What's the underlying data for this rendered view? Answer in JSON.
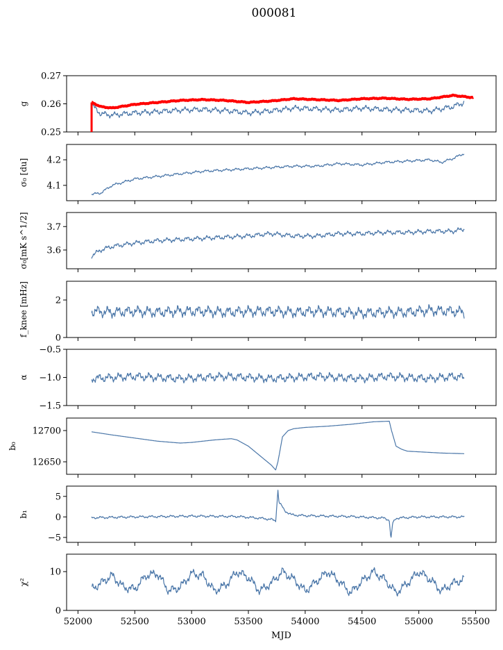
{
  "figure_title": "000081",
  "chart_data": [
    {
      "type": "line",
      "ylabel": "g",
      "ylim": [
        0.25,
        0.27
      ],
      "yticks": [
        0.25,
        0.26,
        0.27
      ],
      "ytick_labels": [
        "0.25",
        "0.26",
        "0.27"
      ],
      "xlim": [
        51900,
        55680
      ],
      "series": [
        {
          "color": "#4a76a8",
          "x": [
            52120,
            52200,
            52300,
            52500,
            52700,
            52900,
            53100,
            53300,
            53500,
            53700,
            53900,
            54100,
            54300,
            54500,
            54700,
            54900,
            55100,
            55300,
            55400
          ],
          "y": [
            0.2595,
            0.2565,
            0.256,
            0.2568,
            0.2572,
            0.2578,
            0.258,
            0.2576,
            0.2568,
            0.2575,
            0.2585,
            0.2582,
            0.2578,
            0.2585,
            0.258,
            0.2578,
            0.2575,
            0.259,
            0.2605
          ]
        },
        {
          "color": "#ff0000",
          "x": [
            52120,
            52200,
            52300,
            52500,
            52700,
            52900,
            53100,
            53300,
            53500,
            53700,
            53900,
            54100,
            54300,
            54500,
            54700,
            54900,
            55100,
            55300,
            55480
          ],
          "y": [
            0.2605,
            0.259,
            0.2585,
            0.2598,
            0.2605,
            0.2612,
            0.2615,
            0.2612,
            0.2605,
            0.261,
            0.2618,
            0.2615,
            0.2612,
            0.2618,
            0.262,
            0.2616,
            0.2618,
            0.263,
            0.2622
          ]
        }
      ]
    },
    {
      "type": "line",
      "ylabel": "σ₀ [du]",
      "ylim": [
        4.04,
        4.26
      ],
      "yticks": [
        4.1,
        4.2
      ],
      "ytick_labels": [
        "4.1",
        "4.2"
      ],
      "xlim": [
        51900,
        55680
      ],
      "series": [
        {
          "color": "#4a76a8",
          "x": [
            52120,
            52200,
            52300,
            52500,
            52700,
            52900,
            53100,
            53300,
            53500,
            53700,
            53900,
            54100,
            54300,
            54500,
            54700,
            54900,
            55100,
            55200,
            55300,
            55400
          ],
          "y": [
            4.065,
            4.07,
            4.1,
            4.125,
            4.135,
            4.145,
            4.155,
            4.16,
            4.165,
            4.17,
            4.175,
            4.175,
            4.185,
            4.18,
            4.19,
            4.195,
            4.2,
            4.19,
            4.205,
            4.225
          ]
        }
      ]
    },
    {
      "type": "line",
      "ylabel": "σ₀[mK s^1/2]",
      "ylim": [
        3.52,
        3.76
      ],
      "yticks": [
        3.6,
        3.7
      ],
      "ytick_labels": [
        "3.6",
        "3.7"
      ],
      "xlim": [
        51900,
        55680
      ],
      "series": [
        {
          "color": "#4a76a8",
          "x": [
            52120,
            52200,
            52300,
            52500,
            52700,
            52900,
            53100,
            53300,
            53500,
            53700,
            53900,
            54100,
            54300,
            54500,
            54700,
            54900,
            55100,
            55300,
            55400
          ],
          "y": [
            3.575,
            3.6,
            3.615,
            3.63,
            3.64,
            3.645,
            3.65,
            3.655,
            3.66,
            3.67,
            3.66,
            3.66,
            3.67,
            3.67,
            3.675,
            3.675,
            3.68,
            3.68,
            3.69
          ]
        }
      ]
    },
    {
      "type": "line",
      "ylabel": "f_knee [mHz]",
      "ylim": [
        0,
        3
      ],
      "yticks": [
        0,
        2
      ],
      "ytick_labels": [
        "0",
        "2"
      ],
      "xlim": [
        51900,
        55680
      ],
      "series": [
        {
          "color": "#4a76a8",
          "x": [
            52120,
            52300,
            52500,
            52700,
            52900,
            53100,
            53300,
            53500,
            53700,
            53900,
            54100,
            54300,
            54500,
            54700,
            54900,
            55100,
            55300,
            55400
          ],
          "y": [
            1.4,
            1.35,
            1.4,
            1.35,
            1.4,
            1.4,
            1.35,
            1.4,
            1.4,
            1.35,
            1.4,
            1.35,
            1.3,
            1.35,
            1.35,
            1.45,
            1.4,
            1.35
          ]
        }
      ]
    },
    {
      "type": "line",
      "ylabel": "α",
      "ylim": [
        -1.5,
        -0.5
      ],
      "yticks": [
        -1.5,
        -1.0,
        -0.5
      ],
      "ytick_labels": [
        "−1.5",
        "−1.0",
        "−0.5"
      ],
      "xlim": [
        51900,
        55680
      ],
      "series": [
        {
          "color": "#4a76a8",
          "x": [
            52120,
            52300,
            52500,
            52700,
            52900,
            53100,
            53300,
            53500,
            53700,
            53900,
            54100,
            54300,
            54500,
            54700,
            54900,
            55100,
            55300,
            55400
          ],
          "y": [
            -1.02,
            -1.0,
            -0.98,
            -1.0,
            -1.02,
            -1.0,
            -0.98,
            -1.0,
            -1.02,
            -1.0,
            -0.98,
            -1.0,
            -1.02,
            -0.98,
            -1.0,
            -1.02,
            -0.98,
            -1.0
          ]
        }
      ]
    },
    {
      "type": "line",
      "ylabel": "b₀",
      "ylim": [
        12630,
        12720
      ],
      "yticks": [
        12650,
        12700
      ],
      "ytick_labels": [
        "12650",
        "12700"
      ],
      "xlim": [
        51900,
        55680
      ],
      "series": [
        {
          "color": "#4a76a8",
          "x": [
            52120,
            52300,
            52500,
            52700,
            52900,
            53000,
            53200,
            53350,
            53400,
            53500,
            53600,
            53700,
            53740,
            53760,
            53800,
            53850,
            53900,
            54000,
            54200,
            54400,
            54600,
            54740,
            54760,
            54800,
            54850,
            54900,
            55000,
            55200,
            55400
          ],
          "y": [
            12698,
            12693,
            12688,
            12683,
            12680,
            12681,
            12685,
            12687,
            12685,
            12675,
            12660,
            12645,
            12637,
            12650,
            12690,
            12700,
            12703,
            12705,
            12707,
            12710,
            12714,
            12715,
            12700,
            12675,
            12670,
            12667,
            12666,
            12664,
            12663
          ]
        }
      ]
    },
    {
      "type": "line",
      "ylabel": "b₁",
      "ylim": [
        -6.2,
        7.5
      ],
      "yticks": [
        -5,
        0,
        5
      ],
      "ytick_labels": [
        "−5",
        "0",
        "5"
      ],
      "xlim": [
        51900,
        55680
      ],
      "series": [
        {
          "color": "#4a76a8",
          "x": [
            52120,
            52500,
            53000,
            53400,
            53600,
            53700,
            53740,
            53760,
            53770,
            53790,
            53820,
            53880,
            54000,
            54400,
            54700,
            54740,
            54755,
            54770,
            54800,
            55000,
            55400
          ],
          "y": [
            -0.2,
            0.0,
            0.2,
            0.1,
            -0.3,
            -0.6,
            -1.0,
            6.5,
            3.5,
            2.8,
            1.5,
            0.5,
            0.3,
            0.1,
            -0.3,
            -0.8,
            -5.5,
            -1.5,
            -0.3,
            0.0,
            0.0
          ]
        }
      ]
    },
    {
      "type": "line",
      "ylabel": "χ²",
      "ylim": [
        0,
        14.5
      ],
      "yticks": [
        0,
        10
      ],
      "ytick_labels": [
        "0",
        "10"
      ],
      "xlim": [
        51900,
        55680
      ],
      "xticks": [
        52000,
        52500,
        53000,
        53500,
        54000,
        54500,
        55000,
        55500
      ],
      "xtick_labels": [
        "52000",
        "52500",
        "53000",
        "53500",
        "54000",
        "54500",
        "55000",
        "55500"
      ],
      "xlabel": "MJD",
      "series": [
        {
          "color": "#4a76a8",
          "x": [
            52120,
            52200,
            52300,
            52400,
            52500,
            52600,
            52700,
            52800,
            52900,
            53000,
            53100,
            53200,
            53300,
            53400,
            53500,
            53600,
            53700,
            53800,
            53900,
            54000,
            54100,
            54200,
            54300,
            54400,
            54500,
            54600,
            54700,
            54800,
            54900,
            55000,
            55100,
            55200,
            55300,
            55400
          ],
          "y": [
            5.5,
            7.0,
            9.0,
            6.0,
            5.5,
            9.0,
            9.5,
            5.0,
            6.0,
            9.5,
            9.0,
            5.0,
            6.5,
            10.0,
            8.5,
            5.0,
            7.0,
            10.0,
            8.0,
            5.0,
            7.5,
            10.0,
            7.5,
            4.5,
            7.5,
            10.0,
            8.0,
            4.5,
            7.0,
            10.0,
            8.0,
            5.0,
            7.0,
            8.0
          ]
        }
      ]
    }
  ]
}
